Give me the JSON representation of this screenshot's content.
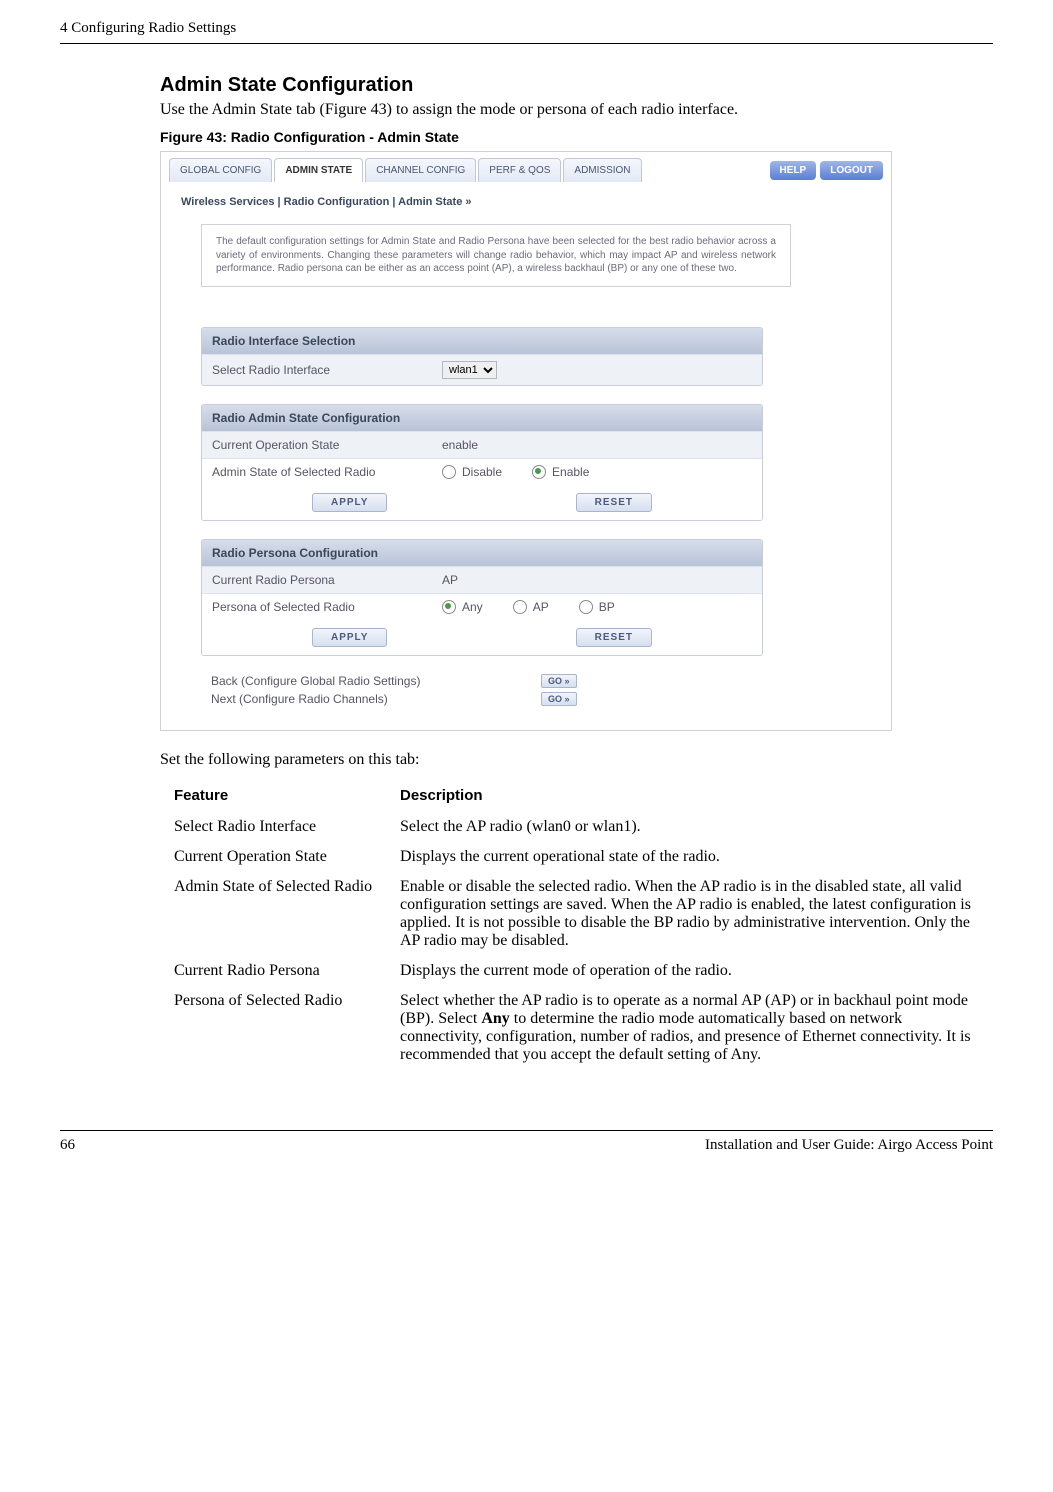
{
  "header": {
    "left": "4  Configuring Radio Settings"
  },
  "section": {
    "title": "Admin State Configuration",
    "intro": "Use the Admin State tab (Figure 43) to assign the mode or persona of each radio interface.",
    "figure_label": "Figure 43:      Radio Configuration - Admin State",
    "below": "Set the following parameters on this tab:"
  },
  "screenshot": {
    "tabs": [
      "GLOBAL CONFIG",
      "ADMIN STATE",
      "CHANNEL CONFIG",
      "PERF & QOS",
      "ADMISSION"
    ],
    "active_tab_index": 1,
    "help": "HELP",
    "logout": "LOGOUT",
    "breadcrumb": "Wireless Services | Radio Configuration | Admin State  »",
    "info_text": "The default configuration settings for Admin State and Radio Persona have been selected for the best radio behavior across a variety of environments. Changing these parameters will change radio behavior, which may impact AP and wireless network performance. Radio persona can be either as an access point (AP), a wireless backhaul (BP) or any one of these two.",
    "panel1": {
      "title": "Radio Interface Selection",
      "row1_label": "Select Radio Interface",
      "select_value": "wlan1"
    },
    "panel2": {
      "title": "Radio Admin State Configuration",
      "row1_label": "Current Operation State",
      "row1_value": "enable",
      "row2_label": "Admin State of Selected Radio",
      "opt_disable": "Disable",
      "opt_enable": "Enable"
    },
    "panel3": {
      "title": "Radio Persona Configuration",
      "row1_label": "Current Radio Persona",
      "row1_value": "AP",
      "row2_label": "Persona of Selected Radio",
      "opt_any": "Any",
      "opt_ap": "AP",
      "opt_bp": "BP"
    },
    "buttons": {
      "apply": "APPLY",
      "reset": "RESET",
      "go": "GO »"
    },
    "nav": {
      "back": "Back (Configure Global Radio Settings)",
      "next": "Next (Configure Radio Channels)"
    }
  },
  "table": {
    "col1": "Feature",
    "col2": "Description",
    "rows": [
      {
        "f": "Select Radio Interface",
        "d": "Select the AP radio (wlan0 or wlan1)."
      },
      {
        "f": "Current Operation State",
        "d": "Displays the current operational state of the radio."
      },
      {
        "f": "Admin State of Selected Radio",
        "d": "Enable or disable the selected radio. When the AP radio is in the disabled state, all valid configuration settings are saved. When the AP radio is enabled, the latest configuration is applied. It is not possible to disable the BP radio by administrative intervention. Only the AP radio may be disabled."
      },
      {
        "f": "Current Radio Persona",
        "d": "Displays the current mode of operation of the radio."
      }
    ],
    "persona_row": {
      "f": "Persona of Selected Radio",
      "d_pre": "Select whether the AP radio is to operate as a normal AP (AP) or in backhaul point mode (BP). Select ",
      "d_bold": "Any",
      "d_post": " to determine the radio mode automatically based on network connectivity, configuration, number of radios, and presence of Ethernet connectivity. It is recommended that you accept the default setting of Any."
    }
  },
  "footer": {
    "page": "66",
    "right": "Installation and User Guide: Airgo Access Point"
  }
}
